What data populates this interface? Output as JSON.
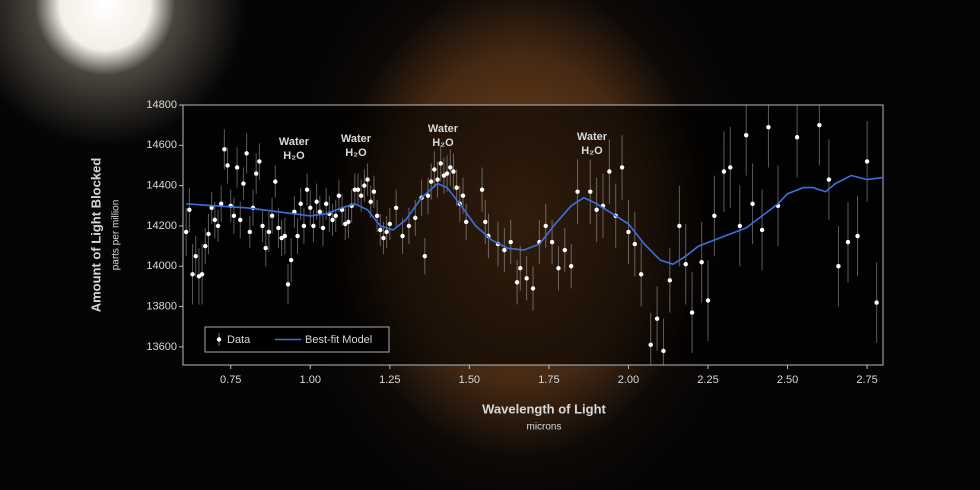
{
  "chart_data": {
    "type": "scatter",
    "y_label": "Amount of Light Blocked",
    "y_sublabel": "parts per million",
    "x_label": "Wavelength of Light",
    "x_sublabel": "microns",
    "annotations": [
      {
        "text": "Water",
        "formula": "H₂O"
      },
      {
        "text": "Water",
        "formula": "H₂O"
      },
      {
        "text": "Water",
        "formula": "H₂O"
      },
      {
        "text": "Water",
        "formula": "H₂O"
      }
    ],
    "xlim": [
      0.6,
      2.8
    ],
    "ylim": [
      13510,
      14800
    ],
    "xticks": [
      0.75,
      {
        "value": 1.0,
        "label": "1.00"
      },
      1.25,
      {
        "value": 1.5,
        "label": "1.50"
      },
      1.75,
      {
        "value": 2.0,
        "label": "2.00"
      },
      2.25,
      {
        "value": 2.5,
        "label": "2.50"
      },
      2.75
    ],
    "yticks": [
      13600,
      13800,
      14000,
      14200,
      14400,
      14600,
      14800
    ],
    "legend": "lower left",
    "series": [
      {
        "name": "Data",
        "color": "#ffffff",
        "x": [
          0.61,
          0.62,
          0.63,
          0.64,
          0.65,
          0.66,
          0.67,
          0.68,
          0.69,
          0.7,
          0.71,
          0.72,
          0.73,
          0.74,
          0.75,
          0.76,
          0.77,
          0.78,
          0.79,
          0.8,
          0.81,
          0.82,
          0.83,
          0.84,
          0.85,
          0.86,
          0.87,
          0.88,
          0.89,
          0.9,
          0.91,
          0.92,
          0.93,
          0.94,
          0.95,
          0.96,
          0.97,
          0.98,
          0.99,
          1.0,
          1.01,
          1.02,
          1.03,
          1.04,
          1.05,
          1.06,
          1.07,
          1.08,
          1.09,
          1.1,
          1.11,
          1.12,
          1.13,
          1.14,
          1.15,
          1.16,
          1.17,
          1.18,
          1.19,
          1.2,
          1.21,
          1.22,
          1.23,
          1.24,
          1.25,
          1.27,
          1.29,
          1.31,
          1.33,
          1.35,
          1.36,
          1.37,
          1.38,
          1.39,
          1.4,
          1.41,
          1.42,
          1.43,
          1.44,
          1.45,
          1.46,
          1.47,
          1.48,
          1.49,
          1.54,
          1.55,
          1.56,
          1.59,
          1.61,
          1.63,
          1.65,
          1.66,
          1.68,
          1.7,
          1.72,
          1.74,
          1.76,
          1.78,
          1.8,
          1.82,
          1.84,
          1.88,
          1.9,
          1.92,
          1.94,
          1.96,
          1.98,
          2.0,
          2.02,
          2.04,
          2.07,
          2.09,
          2.11,
          2.13,
          2.16,
          2.18,
          2.2,
          2.23,
          2.25,
          2.27,
          2.3,
          2.32,
          2.35,
          2.37,
          2.39,
          2.42,
          2.44,
          2.47,
          2.53,
          2.6,
          2.63,
          2.66,
          2.69,
          2.72,
          2.75,
          2.78
        ],
        "values": [
          14170,
          14280,
          13960,
          14050,
          13950,
          13960,
          14100,
          14160,
          14290,
          14230,
          14200,
          14310,
          14580,
          14500,
          14300,
          14250,
          14490,
          14230,
          14410,
          14560,
          14170,
          14290,
          14460,
          14520,
          14200,
          14090,
          14170,
          14250,
          14420,
          14190,
          14140,
          14150,
          13910,
          14030,
          14270,
          14150,
          14310,
          14200,
          14380,
          14290,
          14200,
          14320,
          14270,
          14190,
          14310,
          14260,
          14230,
          14250,
          14350,
          14280,
          14210,
          14220,
          14300,
          14380,
          14380,
          14350,
          14400,
          14430,
          14320,
          14370,
          14250,
          14180,
          14140,
          14170,
          14210,
          14290,
          14150,
          14200,
          14240,
          14340,
          14050,
          14350,
          14420,
          14480,
          14430,
          14510,
          14450,
          14460,
          14490,
          14470,
          14390,
          14310,
          14350,
          14220,
          14380,
          14220,
          14150,
          14110,
          14080,
          14120,
          13920,
          13990,
          13940,
          13890,
          14120,
          14200,
          14120,
          13990,
          14080,
          14000,
          14370,
          14370,
          14280,
          14300,
          14470,
          14250,
          14490,
          14170,
          14110,
          13960,
          13610,
          13740,
          13580,
          13930,
          14200,
          14010,
          13770,
          14020,
          13830,
          14250,
          14470,
          14490,
          14200,
          14650,
          14310,
          14180,
          14690,
          14300,
          14640,
          14700,
          14430,
          14000,
          14120,
          14150,
          14520,
          13820
        ],
        "errors": [
          120,
          110,
          150,
          100,
          140,
          150,
          90,
          100,
          80,
          90,
          80,
          90,
          100,
          90,
          80,
          90,
          100,
          90,
          80,
          100,
          80,
          90,
          100,
          90,
          80,
          90,
          100,
          90,
          80,
          100,
          90,
          90,
          100,
          110,
          80,
          90,
          80,
          90,
          80,
          90,
          80,
          90,
          80,
          90,
          80,
          90,
          80,
          80,
          80,
          80,
          80,
          80,
          80,
          80,
          80,
          80,
          80,
          80,
          80,
          80,
          80,
          80,
          80,
          80,
          80,
          90,
          90,
          90,
          90,
          90,
          90,
          90,
          90,
          90,
          90,
          90,
          90,
          90,
          90,
          90,
          90,
          90,
          90,
          90,
          110,
          110,
          110,
          110,
          110,
          110,
          110,
          110,
          110,
          110,
          110,
          110,
          110,
          110,
          110,
          110,
          160,
          160,
          160,
          160,
          160,
          160,
          160,
          160,
          160,
          160,
          160,
          160,
          160,
          160,
          200,
          200,
          200,
          200,
          200,
          200,
          200,
          200,
          200,
          200,
          200,
          200,
          200,
          200,
          200,
          200,
          200,
          200,
          200,
          200,
          200,
          200
        ]
      },
      {
        "name": "Best-fit Model",
        "type": "line",
        "color": "#3b6fe0",
        "x": [
          0.61,
          0.7,
          0.8,
          0.9,
          1.0,
          1.05,
          1.1,
          1.14,
          1.18,
          1.22,
          1.26,
          1.3,
          1.35,
          1.4,
          1.43,
          1.47,
          1.52,
          1.57,
          1.62,
          1.67,
          1.72,
          1.77,
          1.82,
          1.86,
          1.9,
          1.95,
          2.0,
          2.05,
          2.1,
          2.14,
          2.18,
          2.22,
          2.27,
          2.32,
          2.37,
          2.42,
          2.47,
          2.5,
          2.55,
          2.58,
          2.62,
          2.65,
          2.7,
          2.75,
          2.8
        ],
        "values": [
          14310,
          14300,
          14290,
          14270,
          14250,
          14260,
          14290,
          14310,
          14280,
          14200,
          14180,
          14230,
          14340,
          14410,
          14390,
          14310,
          14200,
          14130,
          14090,
          14080,
          14110,
          14210,
          14300,
          14340,
          14310,
          14260,
          14210,
          14110,
          14030,
          14010,
          14050,
          14100,
          14130,
          14160,
          14190,
          14250,
          14310,
          14360,
          14390,
          14390,
          14370,
          14410,
          14450,
          14430,
          14440
        ]
      }
    ]
  }
}
